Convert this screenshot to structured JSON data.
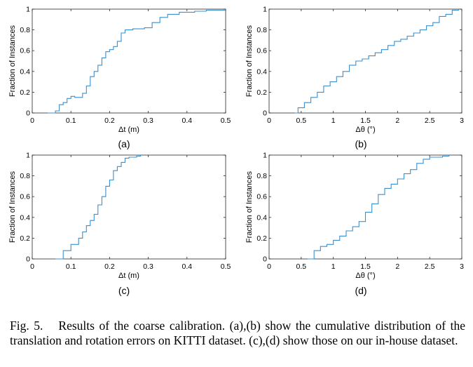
{
  "chart_data": [
    {
      "type": "line",
      "panel": "(a)",
      "xlabel": "Δt (m)",
      "ylabel": "Fraction of Instances",
      "xlim": [
        0,
        0.5
      ],
      "ylim": [
        0,
        1
      ],
      "xticks": [
        "0",
        "0.1",
        "0.2",
        "0.3",
        "0.4",
        "0.5"
      ],
      "yticks": [
        "0",
        "0.2",
        "0.4",
        "0.6",
        "0.8",
        "1"
      ],
      "grid": false,
      "series": [
        {
          "color": "#3a8fcf",
          "x": [
            0.04,
            0.06,
            0.07,
            0.08,
            0.09,
            0.1,
            0.11,
            0.13,
            0.14,
            0.15,
            0.16,
            0.17,
            0.18,
            0.19,
            0.2,
            0.21,
            0.22,
            0.23,
            0.24,
            0.25,
            0.26,
            0.27,
            0.29,
            0.31,
            0.33,
            0.35,
            0.38,
            0.42,
            0.45,
            0.5
          ],
          "y": [
            0.0,
            0.02,
            0.08,
            0.1,
            0.14,
            0.16,
            0.15,
            0.19,
            0.26,
            0.35,
            0.4,
            0.46,
            0.53,
            0.59,
            0.61,
            0.64,
            0.69,
            0.77,
            0.8,
            0.8,
            0.81,
            0.81,
            0.82,
            0.87,
            0.92,
            0.95,
            0.97,
            0.98,
            0.99,
            0.99
          ]
        }
      ]
    },
    {
      "type": "line",
      "panel": "(b)",
      "xlabel": "Δθ (°)",
      "ylabel": "Fraction of Instances",
      "xlim": [
        0,
        3
      ],
      "ylim": [
        0,
        1
      ],
      "xticks": [
        "0",
        "0.5",
        "1",
        "1.5",
        "2",
        "2.5",
        "3"
      ],
      "yticks": [
        "0",
        "0.2",
        "0.4",
        "0.6",
        "0.8",
        "1"
      ],
      "grid": false,
      "series": [
        {
          "color": "#3a8fcf",
          "x": [
            0.4,
            0.45,
            0.55,
            0.65,
            0.75,
            0.85,
            0.95,
            1.05,
            1.15,
            1.25,
            1.35,
            1.45,
            1.55,
            1.65,
            1.75,
            1.85,
            1.95,
            2.05,
            2.15,
            2.25,
            2.35,
            2.45,
            2.55,
            2.65,
            2.75,
            2.85,
            2.95
          ],
          "y": [
            0.0,
            0.05,
            0.1,
            0.15,
            0.2,
            0.26,
            0.3,
            0.35,
            0.4,
            0.46,
            0.5,
            0.52,
            0.55,
            0.58,
            0.61,
            0.65,
            0.69,
            0.71,
            0.74,
            0.77,
            0.8,
            0.84,
            0.87,
            0.93,
            0.95,
            0.99,
            1.0
          ]
        }
      ]
    },
    {
      "type": "line",
      "panel": "(c)",
      "xlabel": "Δt (m)",
      "ylabel": "Fraction of Instances",
      "xlim": [
        0,
        0.5
      ],
      "ylim": [
        0,
        1
      ],
      "xticks": [
        "0",
        "0.1",
        "0.2",
        "0.3",
        "0.4",
        "0.5"
      ],
      "yticks": [
        "0",
        "0.2",
        "0.4",
        "0.6",
        "0.8",
        "1"
      ],
      "grid": false,
      "series": [
        {
          "color": "#3a8fcf",
          "x": [
            0.06,
            0.08,
            0.1,
            0.12,
            0.13,
            0.14,
            0.15,
            0.16,
            0.17,
            0.18,
            0.19,
            0.2,
            0.21,
            0.22,
            0.23,
            0.24,
            0.25,
            0.26,
            0.27,
            0.28
          ],
          "y": [
            0.0,
            0.08,
            0.14,
            0.2,
            0.26,
            0.32,
            0.37,
            0.43,
            0.52,
            0.6,
            0.7,
            0.76,
            0.85,
            0.89,
            0.93,
            0.97,
            0.98,
            0.98,
            0.99,
            1.0
          ]
        }
      ]
    },
    {
      "type": "line",
      "panel": "(d)",
      "xlabel": "Δθ (°)",
      "ylabel": "Fraction of Instances",
      "xlim": [
        0,
        3
      ],
      "ylim": [
        0,
        1
      ],
      "xticks": [
        "0",
        "0.5",
        "1",
        "1.5",
        "2",
        "2.5",
        "3"
      ],
      "yticks": [
        "0",
        "0.2",
        "0.4",
        "0.6",
        "0.8",
        "1"
      ],
      "grid": false,
      "series": [
        {
          "color": "#3a8fcf",
          "x": [
            0.6,
            0.7,
            0.8,
            0.9,
            1.0,
            1.1,
            1.2,
            1.3,
            1.4,
            1.5,
            1.6,
            1.7,
            1.8,
            1.9,
            2.0,
            2.1,
            2.2,
            2.3,
            2.4,
            2.5,
            2.6,
            2.7,
            2.8
          ],
          "y": [
            0.0,
            0.08,
            0.12,
            0.14,
            0.18,
            0.22,
            0.27,
            0.31,
            0.36,
            0.45,
            0.53,
            0.62,
            0.68,
            0.72,
            0.77,
            0.82,
            0.86,
            0.92,
            0.96,
            0.98,
            0.98,
            0.99,
            1.0
          ]
        }
      ]
    }
  ],
  "panel_labels": [
    "(a)",
    "(b)",
    "(c)",
    "(d)"
  ],
  "caption": {
    "label": "Fig. 5.",
    "text": "Results of the coarse calibration. (a),(b) show the cumulative distribution of the translation and rotation errors on KITTI dataset. (c),(d) show those on our in-house dataset."
  }
}
